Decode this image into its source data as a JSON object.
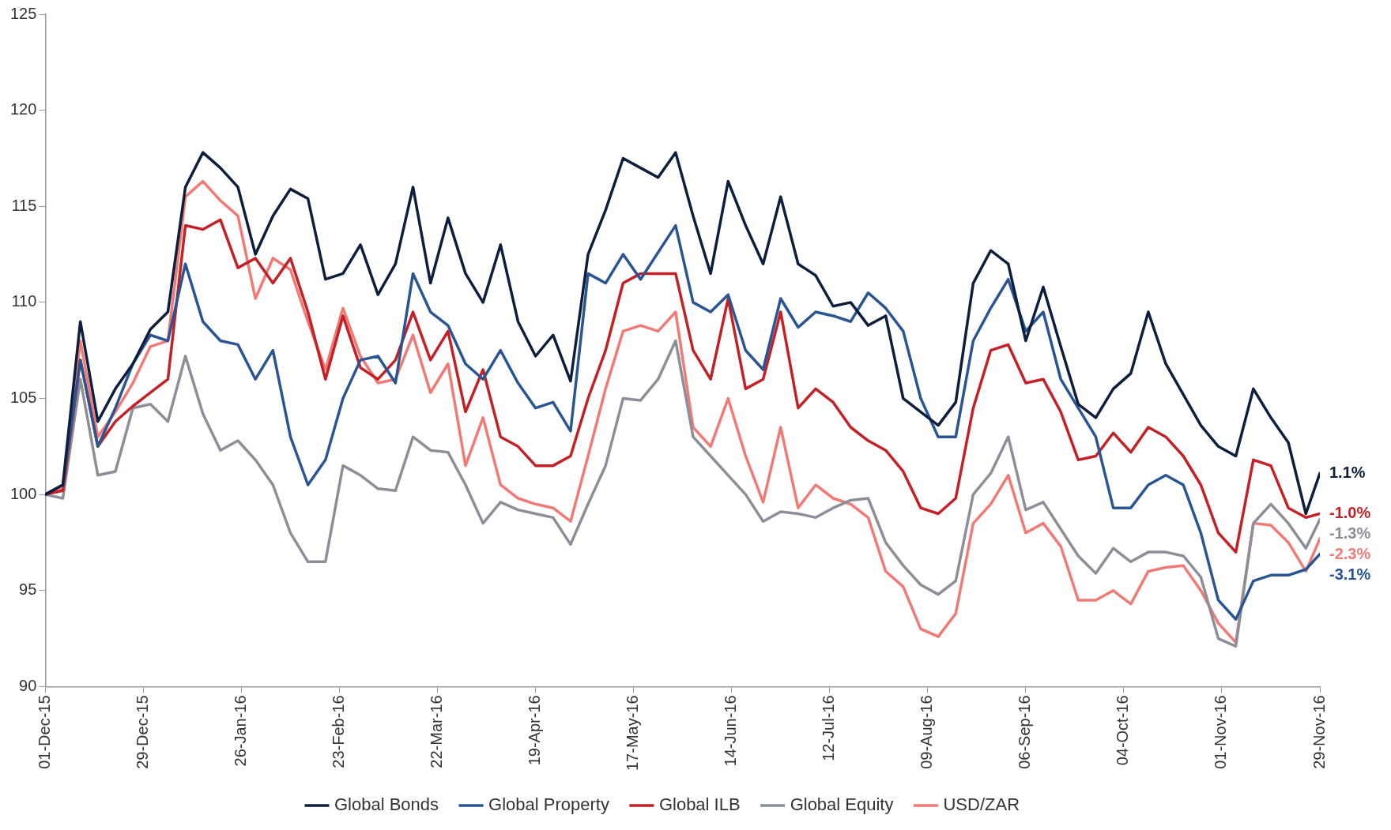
{
  "chart_data": {
    "type": "line",
    "x": [
      "2015-12-01",
      "2015-12-06",
      "2015-12-11",
      "2015-12-16",
      "2015-12-21",
      "2015-12-26",
      "2015-12-31",
      "2016-01-05",
      "2016-01-10",
      "2016-01-15",
      "2016-01-20",
      "2016-01-25",
      "2016-01-30",
      "2016-02-04",
      "2016-02-09",
      "2016-02-14",
      "2016-02-19",
      "2016-02-24",
      "2016-02-29",
      "2016-03-05",
      "2016-03-10",
      "2016-03-15",
      "2016-03-20",
      "2016-03-25",
      "2016-03-30",
      "2016-04-04",
      "2016-04-09",
      "2016-04-14",
      "2016-04-19",
      "2016-04-24",
      "2016-04-29",
      "2016-05-04",
      "2016-05-09",
      "2016-05-14",
      "2016-05-19",
      "2016-05-24",
      "2016-05-29",
      "2016-06-03",
      "2016-06-08",
      "2016-06-13",
      "2016-06-18",
      "2016-06-23",
      "2016-06-28",
      "2016-07-03",
      "2016-07-08",
      "2016-07-13",
      "2016-07-18",
      "2016-07-23",
      "2016-07-28",
      "2016-08-02",
      "2016-08-07",
      "2016-08-12",
      "2016-08-17",
      "2016-08-22",
      "2016-08-27",
      "2016-09-01",
      "2016-09-06",
      "2016-09-11",
      "2016-09-16",
      "2016-09-21",
      "2016-09-26",
      "2016-10-01",
      "2016-10-06",
      "2016-10-11",
      "2016-10-16",
      "2016-10-21",
      "2016-10-26",
      "2016-10-31",
      "2016-11-05",
      "2016-11-10",
      "2016-11-15",
      "2016-11-20",
      "2016-11-25",
      "2016-11-29"
    ],
    "series": [
      {
        "name": "Global Bonds",
        "color": "#0d1f3c",
        "values": [
          100,
          100.5,
          109,
          103.8,
          105.5,
          106.8,
          108.6,
          109.5,
          116,
          117.8,
          117,
          116,
          112.5,
          114.5,
          115.9,
          115.4,
          111.2,
          111.5,
          113,
          110.4,
          112,
          116,
          111,
          114.4,
          111.5,
          110,
          113,
          109,
          107.2,
          108.3,
          105.9,
          112.5,
          114.8,
          117.5,
          117,
          116.5,
          117.8,
          114.5,
          111.5,
          116.3,
          114,
          112,
          115.5,
          112,
          111.4,
          109.8,
          110,
          108.8,
          109.3,
          105,
          104.3,
          103.6,
          104.8,
          111,
          112.7,
          112,
          108,
          110.8,
          107.7,
          104.7,
          104,
          105.5,
          106.3,
          109.5,
          106.8,
          105.2,
          103.6,
          102.5,
          102,
          105.5,
          104,
          102.7,
          99,
          101.1
        ]
      },
      {
        "name": "Global Property",
        "color": "#2b5592",
        "values": [
          100,
          100.5,
          107,
          102.5,
          104.5,
          106.8,
          108.3,
          108,
          112,
          109,
          108,
          107.8,
          106,
          107.5,
          103,
          100.5,
          101.8,
          105,
          107,
          107.2,
          105.8,
          111.5,
          109.5,
          108.8,
          106.8,
          106,
          107.5,
          105.8,
          104.5,
          104.8,
          103.3,
          111.5,
          111,
          112.5,
          111.2,
          112.6,
          114,
          110,
          109.5,
          110.4,
          107.5,
          106.5,
          110.2,
          108.7,
          109.5,
          109.3,
          109,
          110.5,
          109.7,
          108.5,
          105,
          103,
          103,
          108,
          109.7,
          111.2,
          108.5,
          109.5,
          106,
          104.5,
          103,
          99.3,
          99.3,
          100.5,
          101,
          100.5,
          98,
          94.5,
          93.5,
          95.5,
          95.8,
          95.8,
          96.1,
          96.9
        ]
      },
      {
        "name": "Global ILB",
        "color": "#c42127",
        "values": [
          100,
          100.2,
          107,
          102.5,
          103.8,
          104.6,
          105.3,
          106,
          114,
          113.8,
          114.3,
          111.8,
          112.3,
          111,
          112.3,
          109.5,
          106,
          109.3,
          106.6,
          106,
          107,
          109.5,
          107,
          108.5,
          104.3,
          106.5,
          103,
          102.5,
          101.5,
          101.5,
          102,
          105,
          107.5,
          111,
          111.5,
          111.5,
          111.5,
          107.5,
          106,
          110.2,
          105.5,
          106,
          109.5,
          104.5,
          105.5,
          104.8,
          103.5,
          102.8,
          102.3,
          101.2,
          99.3,
          99,
          99.8,
          104.5,
          107.5,
          107.8,
          105.8,
          106,
          104.3,
          101.8,
          102,
          103.2,
          102.2,
          103.5,
          103,
          102,
          100.5,
          98,
          97,
          101.8,
          101.5,
          99.3,
          98.8,
          99
        ]
      },
      {
        "name": "Global Equity",
        "color": "#8c8f98",
        "values": [
          100,
          99.8,
          106,
          101,
          101.2,
          104.5,
          104.7,
          103.8,
          107.2,
          104.2,
          102.3,
          102.8,
          101.8,
          100.5,
          98,
          96.5,
          96.5,
          101.5,
          101,
          100.3,
          100.2,
          103,
          102.3,
          102.2,
          100.5,
          98.5,
          99.6,
          99.2,
          99,
          98.8,
          97.4,
          99.5,
          101.5,
          105,
          104.9,
          106,
          108,
          103,
          102,
          101,
          100,
          98.6,
          99.1,
          99,
          98.8,
          99.3,
          99.7,
          99.8,
          97.5,
          96.3,
          95.3,
          94.8,
          95.5,
          100,
          101.1,
          103,
          99.2,
          99.6,
          98.2,
          96.8,
          95.9,
          97.2,
          96.5,
          97,
          97,
          96.8,
          95.7,
          92.5,
          92.1,
          98.5,
          99.5,
          98.5,
          97.2,
          98.7
        ]
      },
      {
        "name": "USD/ZAR",
        "color": "#f07b76",
        "values": [
          100,
          100.3,
          108,
          103,
          104.3,
          105.8,
          107.7,
          108,
          115.5,
          116.3,
          115.3,
          114.5,
          110.2,
          112.3,
          111.7,
          109,
          106.5,
          109.7,
          107.2,
          105.8,
          106,
          108.3,
          105.3,
          106.8,
          101.5,
          104,
          100.5,
          99.8,
          99.5,
          99.3,
          98.6,
          102,
          105.5,
          108.5,
          108.8,
          108.5,
          109.5,
          103.5,
          102.5,
          105,
          102,
          99.6,
          103.5,
          99.3,
          100.5,
          99.8,
          99.5,
          98.8,
          96,
          95.2,
          93,
          92.6,
          93.8,
          98.5,
          99.5,
          101,
          98,
          98.5,
          97.3,
          94.5,
          94.5,
          95,
          94.3,
          96,
          96.2,
          96.3,
          95,
          93.3,
          92.3,
          98.5,
          98.4,
          97.5,
          96,
          97.7
        ]
      }
    ],
    "annotations": [
      {
        "text": "1.1%",
        "x": "2016-11-29",
        "y": 101.1
      },
      {
        "text": "-3.1%",
        "x": "2016-11-29",
        "y": 96.9
      },
      {
        "text": "-1.0%",
        "x": "2016-11-29",
        "y": 99
      },
      {
        "text": "-1.3%",
        "x": "2016-11-29",
        "y": 98.7
      },
      {
        "text": "-2.3%",
        "x": "2016-11-29",
        "y": 97.7
      }
    ],
    "xlim": [
      "2015-12-01",
      "2016-11-29"
    ],
    "xticks": [
      {
        "value": "2015-12-01",
        "label": "01-Dec-15"
      },
      {
        "value": "2015-12-29",
        "label": "29-Dec-15"
      },
      {
        "value": "2016-01-26",
        "label": "26-Jan-16"
      },
      {
        "value": "2016-02-23",
        "label": "23-Feb-16"
      },
      {
        "value": "2016-03-22",
        "label": "22-Mar-16"
      },
      {
        "value": "2016-04-19",
        "label": "19-Apr-16"
      },
      {
        "value": "2016-05-17",
        "label": "17-May-16"
      },
      {
        "value": "2016-06-14",
        "label": "14-Jun-16"
      },
      {
        "value": "2016-07-12",
        "label": "12-Jul-16"
      },
      {
        "value": "2016-08-09",
        "label": "09-Aug-16"
      },
      {
        "value": "2016-09-06",
        "label": "06-Sep-16"
      },
      {
        "value": "2016-10-04",
        "label": "04-Oct-16"
      },
      {
        "value": "2016-11-01",
        "label": "01-Nov-16"
      },
      {
        "value": "2016-11-29",
        "label": "29-Nov-16"
      }
    ],
    "ylim": [
      90,
      125
    ],
    "yticks": [
      90,
      95,
      100,
      105,
      110,
      115,
      120,
      125
    ],
    "grid": false,
    "legend": "bottom",
    "marker": "none",
    "line_style": "solid"
  }
}
